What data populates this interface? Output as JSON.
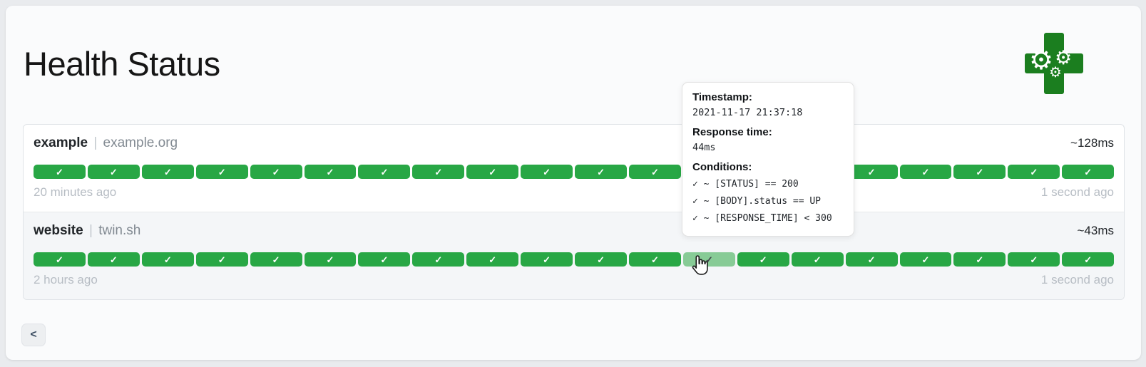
{
  "header": {
    "title": "Health Status"
  },
  "logo": {
    "gear_glyph": "⚙"
  },
  "card": {
    "check_glyph": "✓",
    "services": [
      {
        "name": "example",
        "separator": "|",
        "host": "example.org",
        "avg_response_time": "~128ms",
        "oldest_result": "20 minutes ago",
        "newest_result": "1 second ago",
        "hovered_index": null,
        "results": [
          "up",
          "up",
          "up",
          "up",
          "up",
          "up",
          "up",
          "up",
          "up",
          "up",
          "up",
          "up",
          "up",
          "up",
          "up",
          "up",
          "up",
          "up",
          "up",
          "up"
        ]
      },
      {
        "name": "website",
        "separator": "|",
        "host": "twin.sh",
        "avg_response_time": "~43ms",
        "oldest_result": "2 hours ago",
        "newest_result": "1 second ago",
        "hovered_index": 12,
        "results": [
          "up",
          "up",
          "up",
          "up",
          "up",
          "up",
          "up",
          "up",
          "up",
          "up",
          "up",
          "up",
          "up",
          "up",
          "up",
          "up",
          "up",
          "up",
          "up",
          "up"
        ]
      }
    ]
  },
  "tooltip": {
    "timestamp_label": "Timestamp:",
    "timestamp_value": "2021-11-17 21:37:18",
    "response_time_label": "Response time:",
    "response_time_value": "44ms",
    "conditions_label": "Conditions:",
    "conditions": [
      "✓ ~ [STATUS] == 200",
      "✓ ~ [BODY].status == UP",
      "✓ ~ [RESPONSE_TIME] < 300"
    ]
  },
  "pagination": {
    "previous_label": "<"
  },
  "colors": {
    "success": "#28a745",
    "success_hover": "#87cb96",
    "logo_green": "#1b7e1f",
    "tooltip_border": "#e2e2e2"
  }
}
